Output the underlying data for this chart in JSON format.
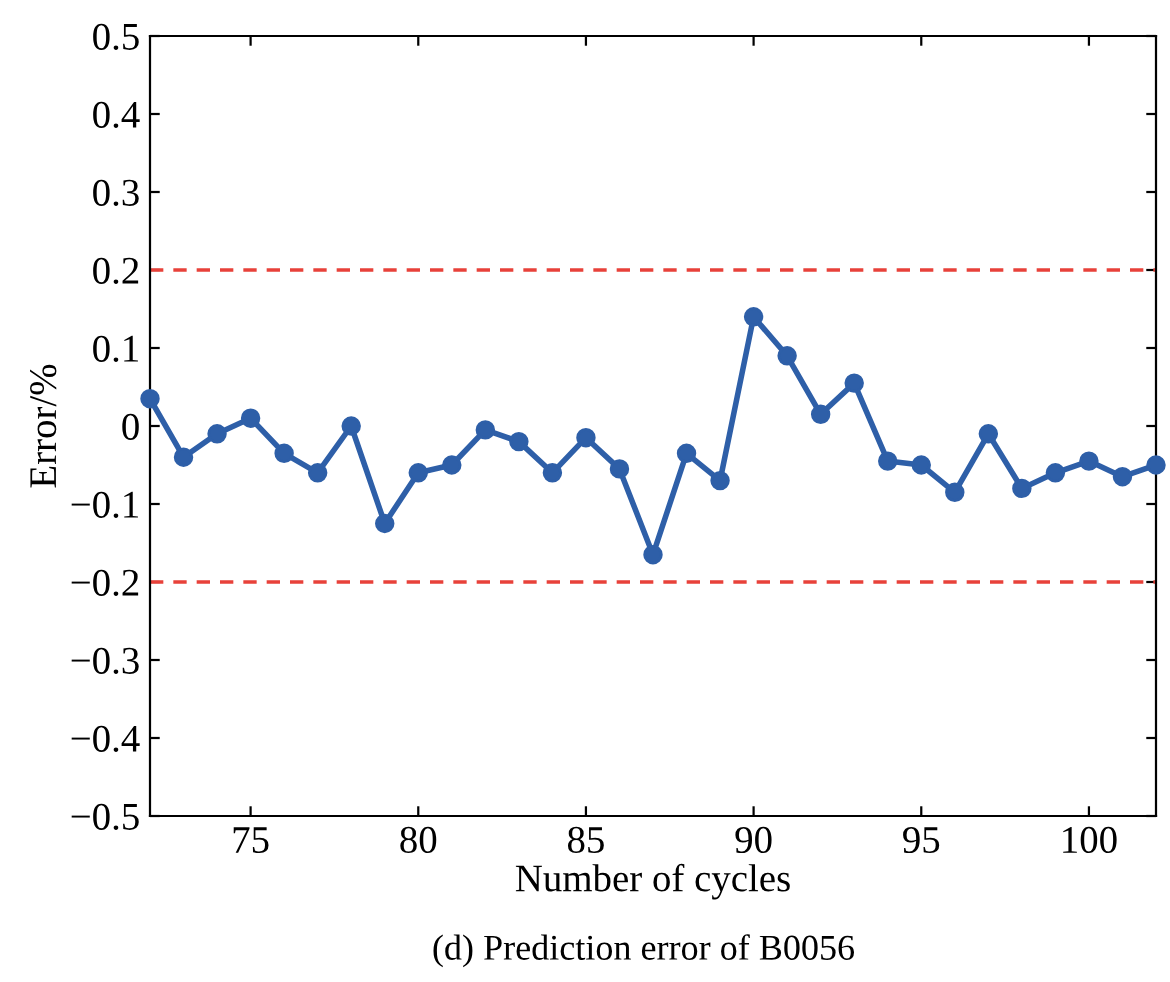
{
  "chart_data": {
    "type": "line",
    "xlabel": "Number of cycles",
    "ylabel": "Error/%",
    "x": [
      72,
      73,
      74,
      75,
      76,
      77,
      78,
      79,
      80,
      81,
      82,
      83,
      84,
      85,
      86,
      87,
      88,
      89,
      90,
      91,
      92,
      93,
      94,
      95,
      96,
      97,
      98,
      99,
      100,
      101,
      102
    ],
    "series": [
      {
        "color": "#2e5fa8",
        "values": [
          0.035,
          -0.04,
          -0.01,
          0.01,
          -0.035,
          -0.06,
          0,
          -0.125,
          -0.06,
          -0.05,
          -0.005,
          -0.02,
          -0.06,
          -0.015,
          -0.055,
          -0.165,
          -0.035,
          -0.07,
          0.14,
          0.09,
          0.015,
          0.055,
          -0.045,
          -0.05,
          -0.085,
          -0.01,
          -0.08,
          -0.06,
          -0.045,
          -0.065,
          -0.05
        ]
      }
    ],
    "marker": "circle",
    "line_style": "solid",
    "grid": false,
    "legend": false,
    "xlim": [
      72,
      102
    ],
    "xticks": [
      75,
      80,
      85,
      90,
      95,
      100
    ],
    "ylim": [
      -0.5,
      0.5
    ],
    "yticks": [
      {
        "value": -0.5,
        "label": "−0.5"
      },
      {
        "value": -0.4,
        "label": "−0.4"
      },
      {
        "value": -0.3,
        "label": "−0.3"
      },
      {
        "value": -0.2,
        "label": "−0.2"
      },
      {
        "value": -0.1,
        "label": "−0.1"
      },
      0,
      0.1,
      0.2,
      0.3,
      0.4,
      0.5
    ],
    "ref_lines": [
      {
        "axis": "y",
        "value": 0.2,
        "color": "#e8413a",
        "line_style": "dashed"
      },
      {
        "axis": "y",
        "value": -0.2,
        "color": "#e8413a",
        "line_style": "dashed"
      }
    ],
    "annotations": [
      "(d) Prediction error of B0056"
    ]
  }
}
